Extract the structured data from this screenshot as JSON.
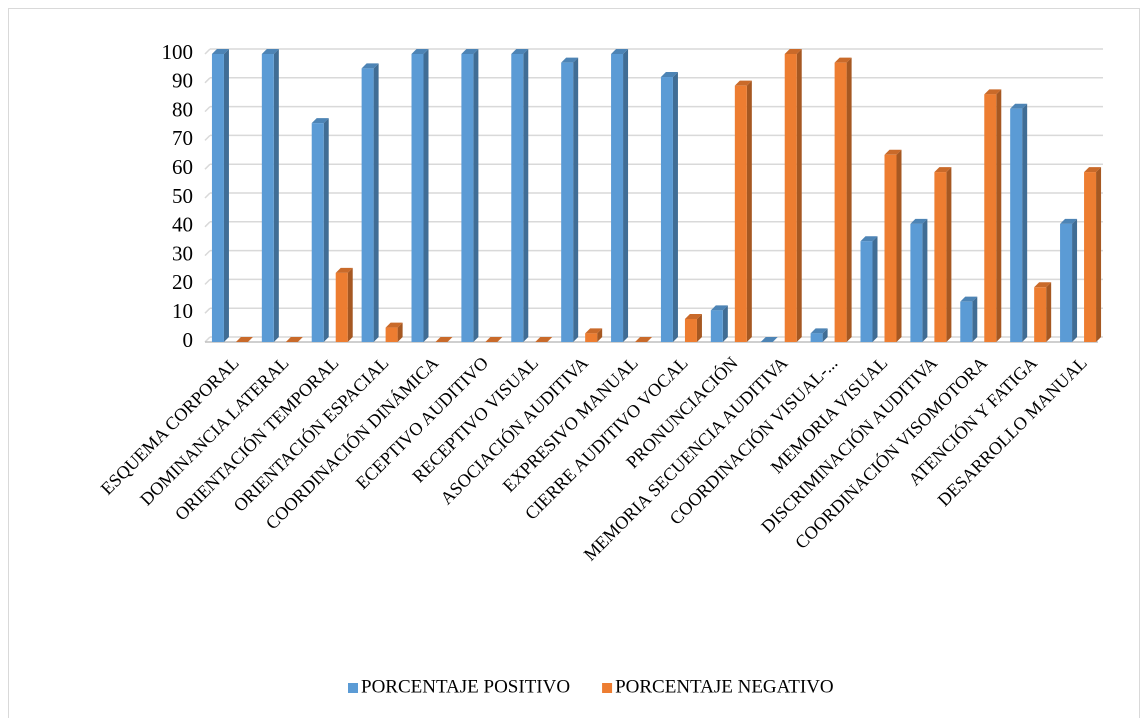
{
  "chart_data": {
    "type": "bar3d",
    "categories": [
      "ESQUEMA CORPORAL",
      "DOMINANCIA LATERAL",
      "ORIENTACIÓN TEMPORAL",
      "ORIENTACIÓN ESPACIAL",
      "COORDINACIÓN DINÁMICA",
      "ECEPTIVO AUDITIVO",
      "RECEPTIVO VISUAL",
      "ASOCIACIÓN AUDITIVA",
      "EXPRESIVO MANUAL",
      "CIERRE AUDITIVO VOCAL",
      "PRONUNCIACIÓN",
      "MEMORIA SECUENCIA AUDITIVA",
      "COORDINACIÓN VISUAL-...",
      "MEMORIA VISUAL",
      "DISCRIMINACIÓN AUDITIVA",
      "COORDINACIÓN VISOMOTORA",
      "ATENCIÓN Y FATIGA",
      "DESARROLLO MANUAL"
    ],
    "series": [
      {
        "name": "PORCENTAJE POSITIVO",
        "color": "#5b9bd5",
        "values": [
          100,
          100,
          76,
          95,
          100,
          100,
          100,
          97,
          100,
          92,
          11,
          0,
          3,
          35,
          41,
          14,
          81,
          41
        ]
      },
      {
        "name": "PORCENTAJE NEGATIVO",
        "color": "#ed7d31",
        "values": [
          0,
          0,
          24,
          5,
          0,
          0,
          0,
          3,
          0,
          8,
          89,
          100,
          97,
          65,
          59,
          86,
          19,
          59
        ]
      }
    ],
    "ylim": [
      0,
      100
    ],
    "yticks": [
      0,
      10,
      20,
      30,
      40,
      50,
      60,
      70,
      80,
      90,
      100
    ],
    "grid": true,
    "legend": "bottom"
  }
}
